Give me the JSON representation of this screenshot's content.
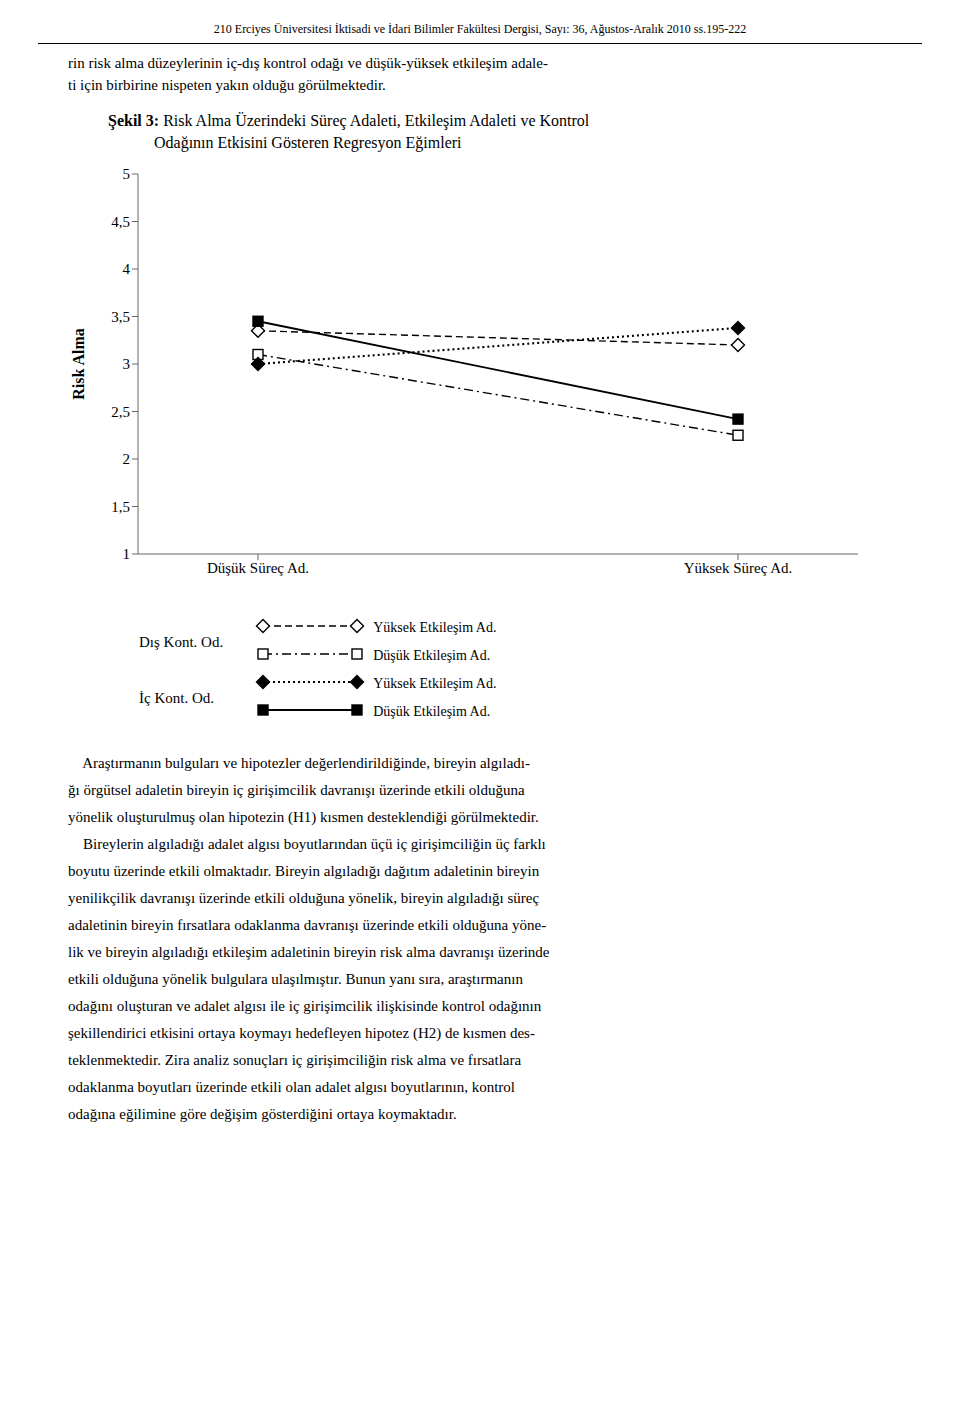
{
  "header": "210    Erciyes Üniversitesi İktisadi ve İdari Bilimler Fakültesi Dergisi, Sayı: 36, Ağustos-Aralık 2010 ss.195-222",
  "intro": [
    "rin risk alma düzeylerinin iç-dış kontrol odağı ve düşük-yüksek etkileşim adale-",
    "ti için birbirine nispeten yakın olduğu görülmektedir."
  ],
  "chart_data": {
    "type": "line",
    "title": [
      "Şekil 3: Risk Alma Üzerindeki Süreç Adaleti, Etkileşim Adaleti ve Kontrol",
      "Odağının Etkisini Gösteren Regresyon Eğimleri"
    ],
    "y_label": "Risk Alma",
    "categories": [
      "Düşük Süreç Ad.",
      "Yüksek Süreç Ad."
    ],
    "ylim": [
      1,
      5
    ],
    "yticks": [
      1,
      {
        "value": 1.5,
        "label": "1,5"
      },
      2,
      {
        "value": 2.5,
        "label": "2,5"
      },
      3,
      {
        "value": 3.5,
        "label": "3,5"
      },
      4,
      {
        "value": 4.5,
        "label": "4,5"
      },
      5
    ],
    "grid": false,
    "series": [
      {
        "name": "Yüksek Etkileşim Ad.",
        "group": "Dış Kont. Od.",
        "color": "#000000",
        "marker": "diamond-open",
        "line_style": "dashed",
        "values": [
          3.35,
          3.2
        ]
      },
      {
        "name": "Düşük Etkileşim Ad.",
        "group": "Dış Kont. Od.",
        "color": "#000000",
        "marker": "square-open",
        "line_style": "dashdot",
        "values": [
          3.1,
          2.25
        ]
      },
      {
        "name": "Yüksek Etkileşim Ad.",
        "group": "İç Kont. Od.",
        "color": "#000000",
        "marker": "diamond",
        "line_style": "dotted",
        "values": [
          3.0,
          3.38
        ]
      },
      {
        "name": "Düşük Etkileşim Ad.",
        "group": "İç Kont. Od.",
        "color": "#000000",
        "marker": "square",
        "line_style": "solid",
        "values": [
          3.45,
          2.42
        ]
      }
    ]
  },
  "text_below": [
    "    Araştırmanın bulguları ve hipotezler değerlendirildiğinde, bireyin algıladı-",
    "ğı örgütsel adaletin bireyin iç girişimcilik davranışı üzerinde etkili olduğuna",
    "yönelik oluşturulmuş olan hipotezin (H1) kısmen desteklendiği görülmektedir.",
    "    Bireylerin algıladığı adalet algısı boyutlarından üçü iç girişimciliğin üç farklı",
    "boyutu üzerinde etkili olmaktadır. Bireyin algıladığı dağıtım adaletinin bireyin",
    "yenilikçilik davranışı üzerinde etkili olduğuna yönelik, bireyin algıladığı süreç",
    "adaletinin bireyin fırsatlara odaklanma davranışı üzerinde etkili olduğuna yöne-",
    "lik ve bireyin algıladığı etkileşim adaletinin bireyin risk alma davranışı üzerinde",
    "etkili olduğuna yönelik bulgulara ulaşılmıştır. Bunun yanı sıra, araştırmanın",
    "odağını oluşturan ve adalet algısı ile iç girişimcilik ilişkisinde kontrol odağının",
    "şekillendirici etkisini ortaya koymayı hedefleyen hipotez (H2) de kısmen des-",
    "teklenmektedir. Zira analiz sonuçları iç girişimciliğin risk alma ve fırsatlara",
    "odaklanma boyutları üzerinde etkili olan adalet algısı boyutlarının, kontrol",
    "odağına eğilimine göre değişim gösterdiğini ortaya koymaktadır."
  ]
}
